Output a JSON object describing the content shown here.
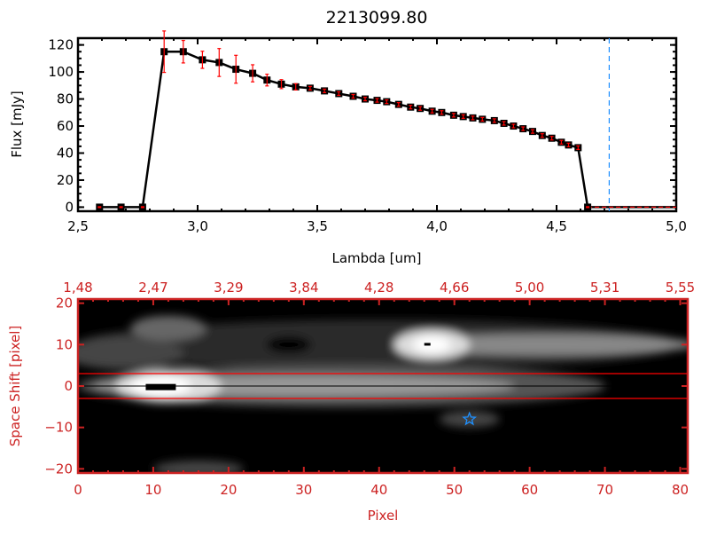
{
  "chart_data": [
    {
      "type": "line",
      "title": "2213099.80",
      "xlabel": "Lambda [um]",
      "ylabel": "Flux [mJy]",
      "xlim": [
        2.5,
        5.0
      ],
      "ylim": [
        -3,
        125
      ],
      "xticks": [
        "2.5",
        "3.0",
        "3.5",
        "4.0",
        "4.5",
        "5.0"
      ],
      "yticks": [
        "0",
        "20",
        "40",
        "60",
        "80",
        "100",
        "120"
      ],
      "x": [
        2.59,
        2.68,
        2.77,
        2.86,
        2.94,
        3.02,
        3.09,
        3.16,
        3.23,
        3.29,
        3.35,
        3.41,
        3.47,
        3.53,
        3.59,
        3.65,
        3.7,
        3.75,
        3.79,
        3.84,
        3.89,
        3.93,
        3.98,
        4.02,
        4.07,
        4.11,
        4.15,
        4.19,
        4.24,
        4.28,
        4.32,
        4.36,
        4.4,
        4.44,
        4.48,
        4.52,
        4.55,
        4.59,
        4.63,
        4.67,
        4.71,
        4.75,
        4.8,
        4.85,
        4.9,
        4.95,
        5.0
      ],
      "y": [
        0,
        0,
        0,
        115,
        115,
        109,
        107,
        102,
        99,
        94,
        91,
        89,
        88,
        86,
        84,
        82,
        80,
        79,
        78,
        76,
        74,
        73,
        71,
        70,
        68,
        67,
        66,
        65,
        64,
        62,
        60,
        58,
        56,
        53,
        51,
        48,
        46,
        44,
        0,
        0,
        0,
        0,
        0,
        0,
        0,
        0,
        0
      ],
      "yerr": [
        0,
        0,
        0,
        15,
        8,
        6,
        10,
        10,
        6,
        4,
        3,
        2,
        1,
        1,
        1,
        1,
        1,
        1,
        1,
        1,
        1,
        1,
        1,
        1,
        1,
        1,
        1,
        1,
        1,
        1,
        1,
        1,
        1,
        1,
        1,
        1,
        1,
        1,
        0,
        0,
        0,
        0,
        0,
        0,
        0,
        0,
        0
      ],
      "marker_color": "#000000",
      "errorbar_color": "#ff0000",
      "vline": {
        "x": 4.72,
        "color": "#1e90ff",
        "style": "dashed"
      },
      "grid": false
    },
    {
      "type": "heatmap",
      "xlabel": "Pixel",
      "ylabel": "Space Shift [pixel]",
      "xlim": [
        0,
        81
      ],
      "ylim": [
        -21,
        21
      ],
      "xticks": [
        "0",
        "10",
        "20",
        "30",
        "40",
        "50",
        "60",
        "70",
        "80"
      ],
      "yticks": [
        "-20",
        "-10",
        "0",
        "10",
        "20"
      ],
      "top_xticks": [
        "1.48",
        "2.47",
        "3.29",
        "3.84",
        "4.28",
        "4.66",
        "5.00",
        "5.31",
        "5.55"
      ],
      "hlines": [
        {
          "y": 3,
          "color": "#ff0000"
        },
        {
          "y": -3,
          "color": "#ff0000"
        },
        {
          "y": 0,
          "color": "#000000"
        }
      ],
      "marker": {
        "x": 52,
        "y": -8,
        "symbol": "star",
        "color": "#1e90ff"
      },
      "colormap": "grayscale",
      "axis_color": "#cc2222"
    }
  ]
}
